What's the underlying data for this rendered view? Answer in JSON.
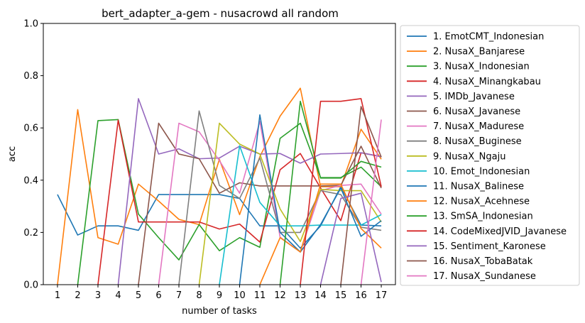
{
  "chart_data": {
    "type": "line",
    "title": "bert_adapter_a-gem - nusacrowd all random",
    "xlabel": "number of tasks",
    "ylabel": "acc",
    "xlim": [
      0.3,
      17.7
    ],
    "ylim": [
      0.0,
      1.0
    ],
    "x": [
      1,
      2,
      3,
      4,
      5,
      6,
      7,
      8,
      9,
      10,
      11,
      12,
      13,
      14,
      15,
      16,
      17
    ],
    "x_ticks": [
      "1",
      "2",
      "3",
      "4",
      "5",
      "6",
      "7",
      "8",
      "9",
      "10",
      "11",
      "12",
      "13",
      "14",
      "15",
      "16",
      "17"
    ],
    "y_ticks": [
      "0.0",
      "0.2",
      "0.4",
      "0.6",
      "0.8",
      "1.0"
    ],
    "grid": false,
    "legend_position": "outside-right",
    "series": [
      {
        "name": "1. EmotCMT_Indonesian",
        "color": "#1f77b4",
        "values": [
          0.345,
          0.19,
          0.225,
          0.225,
          0.208,
          0.345,
          0.345,
          0.345,
          0.345,
          0.33,
          0.225,
          0.225,
          0.14,
          0.225,
          0.375,
          0.228,
          0.225
        ]
      },
      {
        "name": "2. NusaX_Banjarese",
        "color": "#ff7f0e",
        "values": [
          0.0,
          0.67,
          0.18,
          0.155,
          0.385,
          0.32,
          0.25,
          0.23,
          0.48,
          0.268,
          0.49,
          0.645,
          0.752,
          0.375,
          0.375,
          0.595,
          0.48
        ]
      },
      {
        "name": "3. NusaX_Indonesian",
        "color": "#2ca02c",
        "values": [
          null,
          0.0,
          0.628,
          0.632,
          0.27,
          0.18,
          0.095,
          0.23,
          0.13,
          0.18,
          0.143,
          0.56,
          0.618,
          0.41,
          0.41,
          0.45,
          0.375
        ]
      },
      {
        "name": "4. NusaX_Minangkabau",
        "color": "#d62728",
        "values": [
          null,
          null,
          0.0,
          0.63,
          0.24,
          0.24,
          0.24,
          0.24,
          0.213,
          0.232,
          0.163,
          0.44,
          0.502,
          0.37,
          0.245,
          0.505,
          0.49
        ]
      },
      {
        "name": "5. IMDb_Javanese",
        "color": "#9467bd",
        "values": [
          null,
          null,
          null,
          0.0,
          0.712,
          0.5,
          0.52,
          0.482,
          0.485,
          0.53,
          0.5,
          0.502,
          0.465,
          0.5,
          0.502,
          0.505,
          0.49
        ]
      },
      {
        "name": "6. NusaX_Javanese",
        "color": "#8c564b",
        "values": [
          null,
          null,
          null,
          null,
          0.0,
          0.618,
          0.5,
          0.482,
          0.35,
          0.39,
          0.378,
          0.378,
          0.378,
          0.378,
          0.38,
          0.53,
          0.37
        ]
      },
      {
        "name": "7. NusaX_Madurese",
        "color": "#e377c2",
        "values": [
          null,
          null,
          null,
          null,
          null,
          0.0,
          0.618,
          0.585,
          0.475,
          0.35,
          0.625,
          0.182,
          0.125,
          0.36,
          0.38,
          0.385,
          0.27
        ]
      },
      {
        "name": "8. NusaX_Buginese",
        "color": "#7f7f7f",
        "values": [
          null,
          null,
          null,
          null,
          null,
          null,
          0.0,
          0.665,
          0.38,
          0.33,
          0.485,
          0.2,
          0.2,
          0.36,
          0.345,
          0.22,
          0.208
        ]
      },
      {
        "name": "9. NusaX_Ngaju",
        "color": "#bcbd22",
        "values": [
          null,
          null,
          null,
          null,
          null,
          null,
          null,
          0.0,
          0.618,
          0.538,
          0.5,
          0.29,
          0.165,
          0.365,
          0.36,
          0.36,
          0.24
        ]
      },
      {
        "name": "10. Emot_Indonesian",
        "color": "#17becf",
        "values": [
          null,
          null,
          null,
          null,
          null,
          null,
          null,
          null,
          0.0,
          0.532,
          0.315,
          0.225,
          0.225,
          0.228,
          0.228,
          0.228,
          0.268
        ]
      },
      {
        "name": "11. NusaX_Balinese",
        "color": "#1f77b4",
        "values": [
          null,
          null,
          null,
          null,
          null,
          null,
          null,
          null,
          null,
          0.0,
          0.65,
          0.2,
          0.125,
          0.23,
          0.37,
          0.185,
          0.245
        ]
      },
      {
        "name": "12. NusaX_Acehnese",
        "color": "#ff7f0e",
        "values": [
          null,
          null,
          null,
          null,
          null,
          null,
          null,
          null,
          null,
          null,
          0.0,
          0.18,
          0.125,
          0.385,
          0.385,
          0.215,
          0.14
        ]
      },
      {
        "name": "13. SmSA_Indonesian",
        "color": "#2ca02c",
        "values": [
          null,
          null,
          null,
          null,
          null,
          null,
          null,
          null,
          null,
          null,
          null,
          0.0,
          0.702,
          0.408,
          0.408,
          0.472,
          0.45
        ]
      },
      {
        "name": "14. CodeMixedJVID_Javanese",
        "color": "#d62728",
        "values": [
          null,
          null,
          null,
          null,
          null,
          null,
          null,
          null,
          null,
          null,
          null,
          null,
          0.0,
          0.702,
          0.702,
          0.712,
          0.375
        ]
      },
      {
        "name": "15. Sentiment_Karonese",
        "color": "#9467bd",
        "values": [
          null,
          null,
          null,
          null,
          null,
          null,
          null,
          null,
          null,
          null,
          null,
          null,
          null,
          0.0,
          0.33,
          0.35,
          0.01
        ]
      },
      {
        "name": "16. NusaX_TobaBatak",
        "color": "#8c564b",
        "values": [
          null,
          null,
          null,
          null,
          null,
          null,
          null,
          null,
          null,
          null,
          null,
          null,
          null,
          null,
          0.0,
          0.682,
          0.488
        ]
      },
      {
        "name": "17. NusaX_Sundanese",
        "color": "#e377c2",
        "values": [
          null,
          null,
          null,
          null,
          null,
          null,
          null,
          null,
          null,
          null,
          null,
          null,
          null,
          null,
          null,
          0.0,
          0.632
        ]
      }
    ]
  }
}
